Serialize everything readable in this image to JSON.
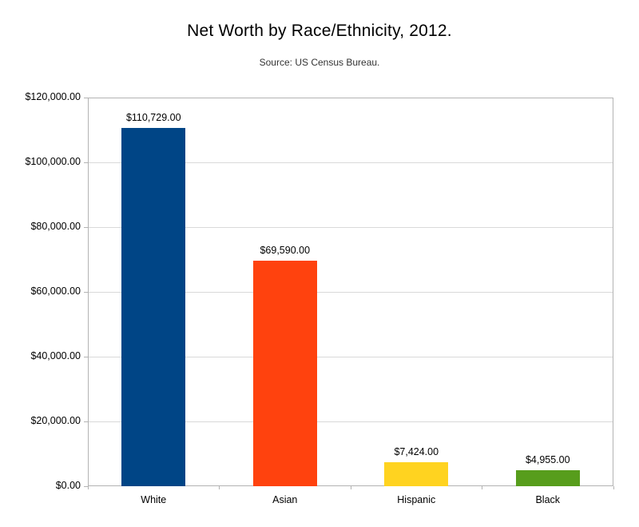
{
  "page": {
    "title": "Net Worth by Race/Ethnicity, 2012.",
    "subtitle": "Source: US Census Bureau."
  },
  "chart_data": {
    "type": "bar",
    "title": "Net Worth by Race/Ethnicity, 2012.",
    "subtitle": "Source: US Census Bureau.",
    "categories": [
      "White",
      "Asian",
      "Hispanic",
      "Black"
    ],
    "values": [
      110729,
      69590,
      7424,
      4955
    ],
    "data_labels": [
      "$110,729.00",
      "$69,590.00",
      "$7,424.00",
      "$4,955.00"
    ],
    "bar_colors": [
      "#004586",
      "#ff420e",
      "#ffd320",
      "#579d1c"
    ],
    "xlabel": "",
    "ylabel": "",
    "ylim": [
      0,
      120000
    ],
    "y_tick_interval": 20000,
    "y_tick_labels": [
      "$0.00",
      "$20,000.00",
      "$40,000.00",
      "$60,000.00",
      "$80,000.00",
      "$100,000.00",
      "$120,000.00"
    ],
    "grid": "horizontal",
    "legend": "none",
    "gridline_color": "#d9d9d9",
    "axis_color": "#b3b3b3",
    "text_color": "#000000",
    "background_color": "#ffffff"
  }
}
